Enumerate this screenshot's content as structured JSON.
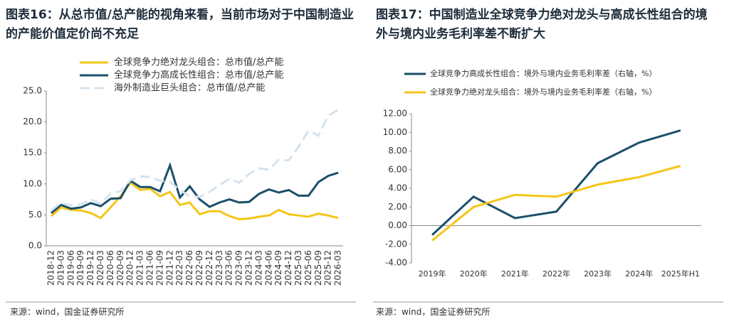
{
  "chart_data": [
    {
      "type": "line",
      "title": "图表16：从总市值/总产能的视角来看，当前市场对于中国制造业的产能价值定价尚不充足",
      "source": "来源：wind，国金证券研究所",
      "categories": [
        "2018-12",
        "2019-03",
        "2019-06",
        "2019-09",
        "2019-12",
        "2020-03",
        "2020-06",
        "2020-09",
        "2020-12",
        "2021-03",
        "2021-06",
        "2021-09",
        "2021-12",
        "2022-03",
        "2022-06",
        "2022-09",
        "2022-12",
        "2023-03",
        "2023-06",
        "2023-09",
        "2023-12",
        "2024-03",
        "2024-06",
        "2024-09",
        "2024-12",
        "2025-03",
        "2025-06",
        "2025-09",
        "2025-12",
        "2026-03"
      ],
      "series": [
        {
          "name": "全球竞争力绝对龙头组合：总市值/总产能",
          "color": "#f5c518",
          "values": [
            4.8,
            6.2,
            5.8,
            5.7,
            5.3,
            4.5,
            6.2,
            8.0,
            10.2,
            9.0,
            9.2,
            8.0,
            8.7,
            6.6,
            7.0,
            5.1,
            5.6,
            5.6,
            4.8,
            4.3,
            4.4,
            4.7,
            4.9,
            5.8,
            5.1,
            4.9,
            4.7,
            5.2,
            4.9,
            4.5
          ]
        },
        {
          "name": "全球竞争力高成长性组合：总市值/总产能",
          "color": "#1b4f6b",
          "values": [
            5.3,
            6.6,
            6.0,
            6.2,
            6.9,
            6.4,
            7.6,
            7.7,
            10.5,
            9.5,
            9.5,
            8.8,
            13.0,
            7.8,
            9.6,
            7.5,
            6.3,
            7.0,
            7.5,
            7.0,
            7.1,
            8.4,
            9.1,
            8.6,
            9.0,
            8.1,
            8.1,
            10.3,
            11.3,
            11.8
          ]
        },
        {
          "name": "海外制造业巨头组合：总市值/总产能",
          "color": "#d5e3ee",
          "dashed": true,
          "values": [
            5.7,
            7.0,
            6.5,
            6.7,
            7.5,
            6.8,
            8.5,
            8.8,
            10.6,
            11.2,
            11.1,
            10.5,
            10.3,
            9.0,
            8.0,
            7.9,
            8.7,
            9.8,
            10.8,
            10.2,
            11.6,
            12.5,
            12.3,
            13.9,
            13.8,
            16.0,
            18.6,
            17.8,
            21.0,
            22.0
          ]
        }
      ],
      "ylim": [
        0,
        25
      ],
      "yticks": [
        {
          "value": 0,
          "label": "0.0"
        },
        {
          "value": 5,
          "label": "5.0"
        },
        {
          "value": 10,
          "label": "10.0"
        },
        {
          "value": 15,
          "label": "15.0"
        },
        {
          "value": 20,
          "label": "20.0"
        },
        {
          "value": 25,
          "label": "25.0"
        }
      ]
    },
    {
      "type": "line",
      "title": "图表17：中国制造业全球竞争力绝对龙头与高成长性组合的境外与境内业务毛利率差不断扩大",
      "source": "来源：wind，国金证券研究所",
      "categories": [
        "2019年",
        "2020年",
        "2021年",
        "2022年",
        "2023年",
        "2024年",
        "2025年H1"
      ],
      "series": [
        {
          "name": "全球竞争力高成长性组合：境外与境内业务毛利率差（右轴，%）",
          "color": "#1b4f6b",
          "values": [
            -1.0,
            3.1,
            0.8,
            1.5,
            6.7,
            8.9,
            10.2
          ]
        },
        {
          "name": "全球竞争力绝对龙头组合：境外与境内业务毛利率差（右轴，%）",
          "color": "#f5c518",
          "values": [
            -1.6,
            2.0,
            3.3,
            3.1,
            4.4,
            5.2,
            6.4
          ]
        }
      ],
      "ylim": [
        -4,
        12
      ],
      "yticks": [
        {
          "value": -4,
          "label": "-4.00"
        },
        {
          "value": -2,
          "label": "-2.00"
        },
        {
          "value": 0,
          "label": "0.00"
        },
        {
          "value": 2,
          "label": "2.00"
        },
        {
          "value": 4,
          "label": "4.00"
        },
        {
          "value": 6,
          "label": "6.00"
        },
        {
          "value": 8,
          "label": "8.00"
        },
        {
          "value": 10,
          "label": "10.00"
        },
        {
          "value": 12,
          "label": "12.00"
        }
      ]
    }
  ]
}
